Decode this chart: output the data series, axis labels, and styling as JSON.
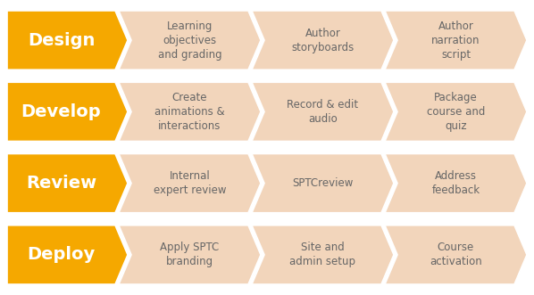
{
  "background_color": "#ffffff",
  "rows": [
    {
      "label": "Design",
      "items": [
        "Learning\nobjectives\nand grading",
        "Author\nstoryboards",
        "Author\nnarration\nscript"
      ]
    },
    {
      "label": "Develop",
      "items": [
        "Create\nanimations &\ninteractions",
        "Record & edit\naudio",
        "Package\ncourse and\nquiz"
      ]
    },
    {
      "label": "Review",
      "items": [
        "Internal\nexpert review",
        "SPTCreview",
        "Address\nfeedback"
      ]
    },
    {
      "label": "Deploy",
      "items": [
        "Apply SPTC\nbranding",
        "Site and\nadmin setup",
        "Course\nactivation"
      ]
    }
  ],
  "label_color": "#F5A800",
  "item_color": "#F2D5BB",
  "label_text_color": "#ffffff",
  "item_text_color": "#666666",
  "label_fontsize": 14,
  "item_fontsize": 8.5,
  "fig_width": 5.98,
  "fig_height": 3.31,
  "dpi": 100
}
